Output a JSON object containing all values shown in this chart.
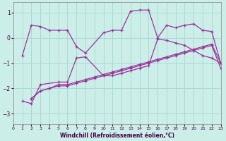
{
  "xlabel": "Windchill (Refroidissement éolien,°C)",
  "bg_color": "#cceee8",
  "grid_color": "#aad4ce",
  "line_color": "#993399",
  "xlim": [
    0,
    23
  ],
  "ylim": [
    -3.4,
    1.4
  ],
  "xticks": [
    0,
    1,
    2,
    3,
    4,
    5,
    6,
    7,
    8,
    9,
    10,
    11,
    12,
    13,
    14,
    15,
    16,
    17,
    18,
    19,
    20,
    21,
    22,
    23
  ],
  "yticks": [
    -3,
    -2,
    -1,
    0,
    1
  ],
  "series": [
    {
      "x": [
        1,
        2,
        3,
        4,
        5,
        6,
        7,
        8,
        10,
        11,
        12,
        13,
        14,
        15,
        16,
        17,
        18,
        19,
        20,
        21,
        22,
        23
      ],
      "y": [
        -0.7,
        0.5,
        0.45,
        0.3,
        0.3,
        0.3,
        -0.35,
        -0.6,
        0.2,
        0.3,
        0.3,
        1.05,
        1.1,
        1.1,
        0.0,
        0.5,
        0.4,
        0.5,
        0.55,
        0.3,
        0.25,
        -1.0
      ]
    },
    {
      "x": [
        1,
        2,
        3,
        5,
        6,
        7,
        8,
        10,
        11,
        12,
        13,
        14,
        15,
        16,
        17,
        18,
        19,
        20,
        21,
        22,
        23
      ],
      "y": [
        -2.5,
        -2.6,
        -1.85,
        -1.75,
        -1.75,
        -0.8,
        -0.75,
        -1.5,
        -1.5,
        -1.4,
        -1.3,
        -1.2,
        -1.1,
        -0.05,
        -0.1,
        -0.2,
        -0.3,
        -0.5,
        -0.7,
        -0.8,
        -1.0
      ]
    },
    {
      "x": [
        2,
        3,
        4,
        5,
        6,
        7,
        8,
        9,
        10,
        11,
        12,
        13,
        14,
        15,
        16,
        17,
        18,
        19,
        20,
        21,
        22,
        23
      ],
      "y": [
        -2.4,
        -2.1,
        -2.0,
        -1.85,
        -1.85,
        -1.75,
        -1.65,
        -1.55,
        -1.45,
        -1.35,
        -1.25,
        -1.15,
        -1.05,
        -0.95,
        -0.85,
        -0.75,
        -0.65,
        -0.55,
        -0.45,
        -0.35,
        -0.25,
        -1.0
      ]
    },
    {
      "x": [
        2,
        3,
        4,
        5,
        6,
        7,
        8,
        9,
        10,
        11,
        12,
        13,
        14,
        15,
        16,
        17,
        18,
        19,
        20,
        21,
        22,
        23
      ],
      "y": [
        -2.4,
        -2.1,
        -2.0,
        -1.9,
        -1.9,
        -1.8,
        -1.7,
        -1.6,
        -1.5,
        -1.4,
        -1.3,
        -1.2,
        -1.1,
        -1.0,
        -0.9,
        -0.8,
        -0.7,
        -0.6,
        -0.5,
        -0.4,
        -0.3,
        -1.2
      ]
    }
  ]
}
